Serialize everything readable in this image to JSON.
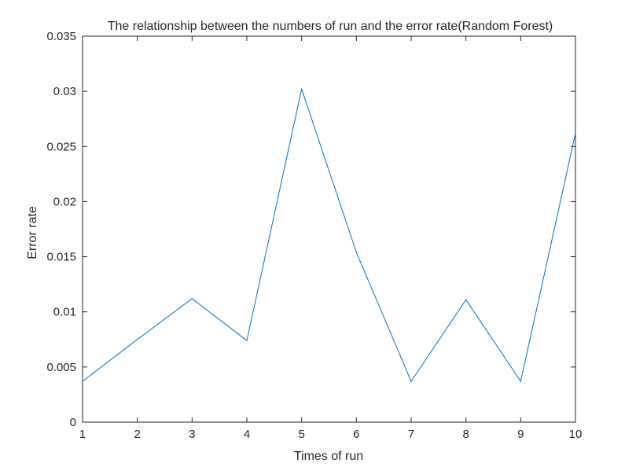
{
  "chart_data": {
    "type": "line",
    "title": "The relationship between the numbers of run and the error rate(Random Forest)",
    "xlabel": "Times of run",
    "ylabel": "Error rate",
    "x": [
      1,
      2,
      3,
      4,
      5,
      6,
      7,
      8,
      9,
      10
    ],
    "series": [
      {
        "values": [
          0.0037,
          0.0075,
          0.0112,
          0.0074,
          0.0302,
          0.0154,
          0.0037,
          0.0111,
          0.0037,
          0.0262
        ]
      }
    ],
    "xlim": [
      1,
      10
    ],
    "ylim": [
      0,
      0.035
    ],
    "xticks": [
      1,
      2,
      3,
      4,
      5,
      6,
      7,
      8,
      9,
      10
    ],
    "xtick_labels": [
      "1",
      "2",
      "3",
      "4",
      "5",
      "6",
      "7",
      "8",
      "9",
      "10"
    ],
    "yticks": [
      0,
      0.005,
      0.01,
      0.015,
      0.02,
      0.025,
      0.03,
      0.035
    ],
    "ytick_labels": [
      "0",
      "0.005",
      "0.01",
      "0.015",
      "0.02",
      "0.025",
      "0.03",
      "0.035"
    ],
    "grid": false,
    "colors": {
      "line": "#0072BD",
      "axes": "#262626"
    }
  }
}
